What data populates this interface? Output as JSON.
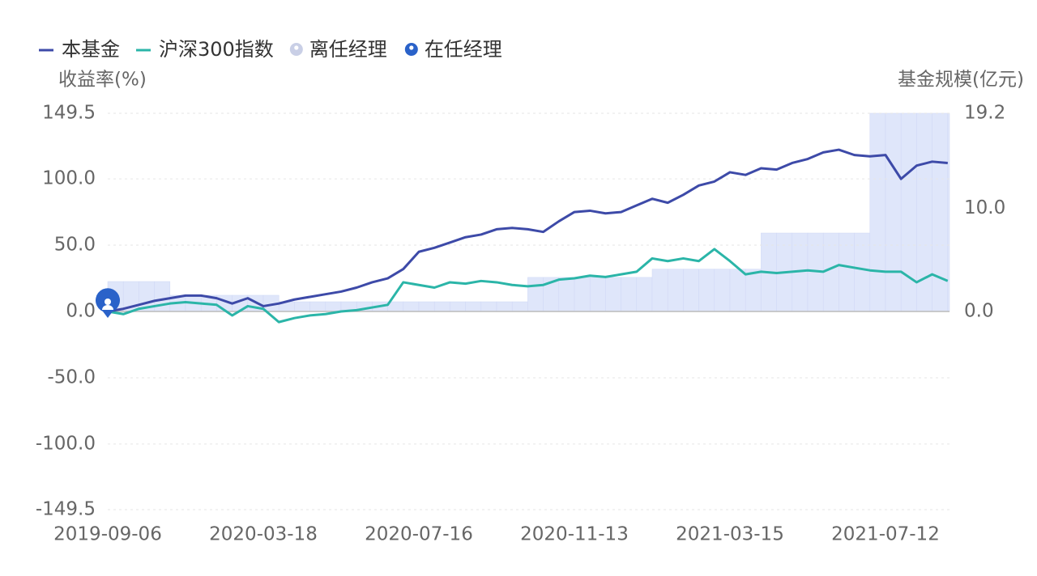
{
  "chart_data": {
    "type": "line",
    "y_label": "收益率(%)",
    "y2_label": "基金规模(亿元)",
    "legend_markers": [
      {
        "name": "离任经理",
        "color": "#c9cfe6"
      },
      {
        "name": "在任经理",
        "color": "#2a62c9"
      }
    ],
    "categories": [
      "2019-09-06",
      null,
      null,
      null,
      null,
      null,
      null,
      null,
      null,
      null,
      "2020-03-18",
      null,
      null,
      null,
      null,
      null,
      null,
      null,
      null,
      null,
      "2020-07-16",
      null,
      null,
      null,
      null,
      null,
      null,
      null,
      null,
      null,
      "2020-11-13",
      null,
      null,
      null,
      null,
      null,
      null,
      null,
      null,
      null,
      "2021-03-15",
      null,
      null,
      null,
      null,
      null,
      null,
      null,
      null,
      null,
      "2021-07-12",
      null,
      null,
      null,
      null
    ],
    "series": [
      {
        "name": "本基金",
        "color": "#3d4aa8",
        "values": [
          0,
          2,
          5,
          8,
          10,
          12,
          12,
          10,
          6,
          10,
          4,
          6,
          9,
          11,
          13,
          15,
          18,
          22,
          25,
          32,
          45,
          48,
          52,
          56,
          58,
          62,
          63,
          62,
          60,
          68,
          75,
          76,
          74,
          75,
          80,
          85,
          82,
          88,
          95,
          98,
          105,
          103,
          108,
          107,
          112,
          115,
          120,
          122,
          118,
          117,
          118,
          100,
          110,
          113,
          112
        ]
      },
      {
        "name": "沪深300指数",
        "color": "#2bb5a8",
        "values": [
          0,
          -2,
          2,
          4,
          6,
          7,
          6,
          5,
          -3,
          4,
          2,
          -8,
          -5,
          -3,
          -2,
          0,
          1,
          3,
          5,
          22,
          20,
          18,
          22,
          21,
          23,
          22,
          20,
          19,
          20,
          24,
          25,
          27,
          26,
          28,
          30,
          40,
          38,
          40,
          38,
          47,
          38,
          28,
          30,
          29,
          30,
          31,
          30,
          35,
          33,
          31,
          30,
          30,
          22,
          28,
          23
        ]
      }
    ],
    "bars": {
      "axis": "y2",
      "color": "#dfe6fa",
      "values": [
        2.9,
        2.9,
        2.9,
        2.9,
        1.57,
        1.57,
        1.57,
        1.57,
        1.57,
        1.57,
        1.57,
        0.94,
        0.94,
        0.94,
        0.94,
        0.94,
        0.94,
        0.94,
        0.94,
        0.94,
        0.94,
        0.94,
        0.94,
        0.94,
        0.94,
        0.94,
        0.94,
        3.3,
        3.3,
        3.3,
        3.3,
        3.3,
        3.3,
        3.3,
        3.3,
        4.1,
        4.1,
        4.1,
        4.1,
        4.1,
        4.1,
        4.1,
        7.6,
        7.6,
        7.6,
        7.6,
        7.6,
        7.6,
        7.6,
        19.2,
        19.2,
        19.2,
        19.2,
        19.2,
        19.2
      ]
    },
    "ylim": [
      -149.5,
      149.5
    ],
    "yticks": [
      -149.5,
      {
        "value": -100,
        "label": "-100.0"
      },
      {
        "value": -50,
        "label": "-50.0"
      },
      {
        "value": 0,
        "label": "0.0"
      },
      {
        "value": 50,
        "label": "50.0"
      },
      {
        "value": 100,
        "label": "100.0"
      },
      149.5
    ],
    "y2lim": [
      -19.2,
      19.2
    ],
    "y2ticks": [
      {
        "value": 0,
        "label": "0.0"
      },
      {
        "value": 10,
        "label": "10.0"
      },
      19.2
    ],
    "grid": true
  }
}
